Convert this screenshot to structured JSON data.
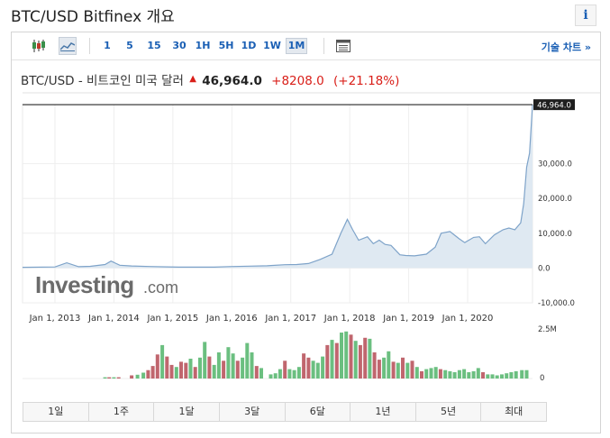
{
  "header": {
    "title": "BTC/USD Bitfinex 개요",
    "info_icon": "i"
  },
  "toolbar": {
    "periods": [
      "1",
      "5",
      "15",
      "30",
      "1H",
      "5H",
      "1D",
      "1W",
      "1M"
    ],
    "active_period": "1M",
    "tech_chart_label": "기술 차트 »",
    "icons": [
      "candlestick-icon",
      "area-chart-icon",
      "table-icon"
    ]
  },
  "quote": {
    "label": "BTC/USD - 비트코인 미국 달러",
    "last": "46,964.0",
    "change": "+8208.0",
    "change_pct": "(+21.18%)",
    "up_color": "#d91e18"
  },
  "brand": {
    "watermark_bold": "Investing",
    "watermark_domain": ".com"
  },
  "ranges": [
    "1일",
    "1주",
    "1달",
    "3달",
    "6달",
    "1년",
    "5년",
    "최대"
  ],
  "chart_data": {
    "type": "area",
    "current_price_label": "46,964.0",
    "y_ticks": [
      "30,000.0",
      "20,000.0",
      "10,000.0",
      "0.0",
      "-10,000.0"
    ],
    "y_tick_values": [
      30000,
      20000,
      10000,
      0,
      -10000
    ],
    "ylim": [
      -10000,
      47000
    ],
    "x_ticks": [
      "Jan 1, 2013",
      "Jan 1, 2014",
      "Jan 1, 2015",
      "Jan 1, 2016",
      "Jan 1, 2017",
      "Jan 1, 2018",
      "Jan 1, 2019",
      "Jan 1, 2020"
    ],
    "x_tick_years": [
      2013,
      2014,
      2015,
      2016,
      2017,
      2018,
      2019,
      2020
    ],
    "xlim": [
      2012.45,
      2021.1
    ],
    "x": [
      2012.45,
      2013.0,
      2013.2,
      2013.4,
      2013.6,
      2013.85,
      2013.95,
      2014.1,
      2014.3,
      2014.6,
      2014.9,
      2015.1,
      2015.4,
      2015.7,
      2015.95,
      2016.3,
      2016.6,
      2016.9,
      2017.1,
      2017.3,
      2017.5,
      2017.7,
      2017.85,
      2017.96,
      2018.05,
      2018.15,
      2018.3,
      2018.4,
      2018.5,
      2018.6,
      2018.7,
      2018.85,
      2018.95,
      2019.1,
      2019.3,
      2019.45,
      2019.55,
      2019.7,
      2019.85,
      2019.95,
      2020.1,
      2020.2,
      2020.3,
      2020.45,
      2020.6,
      2020.7,
      2020.8,
      2020.9,
      2020.95,
      2021.0,
      2021.05,
      2021.1
    ],
    "y": [
      200,
      300,
      1500,
      400,
      500,
      1000,
      2000,
      800,
      600,
      450,
      350,
      250,
      250,
      250,
      420,
      550,
      650,
      950,
      1000,
      1300,
      2500,
      4000,
      10000,
      14000,
      11000,
      8000,
      9000,
      7000,
      8000,
      6800,
      6500,
      3800,
      3600,
      3500,
      4000,
      6000,
      10000,
      10500,
      8500,
      7300,
      8800,
      9000,
      7000,
      9500,
      11000,
      11500,
      11000,
      13000,
      18500,
      29000,
      33000,
      46964
    ],
    "volume": {
      "label": "2.5M",
      "ylim": [
        0,
        2500000
      ],
      "zero_label": "0",
      "bars": [
        {
          "x": 2013.85,
          "v": 60000,
          "up": true
        },
        {
          "x": 2013.92,
          "v": 60000,
          "up": false
        },
        {
          "x": 2014.0,
          "v": 60000,
          "up": true
        },
        {
          "x": 2014.08,
          "v": 60000,
          "up": false
        },
        {
          "x": 2014.3,
          "v": 150000,
          "up": false
        },
        {
          "x": 2014.4,
          "v": 180000,
          "up": true
        },
        {
          "x": 2014.5,
          "v": 280000,
          "up": true
        },
        {
          "x": 2014.58,
          "v": 400000,
          "up": false
        },
        {
          "x": 2014.66,
          "v": 600000,
          "up": false
        },
        {
          "x": 2014.74,
          "v": 1150000,
          "up": false
        },
        {
          "x": 2014.82,
          "v": 1600000,
          "up": true
        },
        {
          "x": 2014.9,
          "v": 1050000,
          "up": false
        },
        {
          "x": 2014.98,
          "v": 650000,
          "up": false
        },
        {
          "x": 2015.06,
          "v": 550000,
          "up": true
        },
        {
          "x": 2015.14,
          "v": 800000,
          "up": false
        },
        {
          "x": 2015.22,
          "v": 750000,
          "up": false
        },
        {
          "x": 2015.3,
          "v": 950000,
          "up": true
        },
        {
          "x": 2015.38,
          "v": 550000,
          "up": false
        },
        {
          "x": 2015.46,
          "v": 1000000,
          "up": true
        },
        {
          "x": 2015.54,
          "v": 1750000,
          "up": true
        },
        {
          "x": 2015.62,
          "v": 1050000,
          "up": false
        },
        {
          "x": 2015.7,
          "v": 650000,
          "up": true
        },
        {
          "x": 2015.78,
          "v": 1250000,
          "up": true
        },
        {
          "x": 2015.86,
          "v": 850000,
          "up": false
        },
        {
          "x": 2015.94,
          "v": 1500000,
          "up": true
        },
        {
          "x": 2016.02,
          "v": 1200000,
          "up": true
        },
        {
          "x": 2016.1,
          "v": 850000,
          "up": false
        },
        {
          "x": 2016.18,
          "v": 1000000,
          "up": true
        },
        {
          "x": 2016.26,
          "v": 1700000,
          "up": true
        },
        {
          "x": 2016.34,
          "v": 1250000,
          "up": true
        },
        {
          "x": 2016.42,
          "v": 600000,
          "up": false
        },
        {
          "x": 2016.5,
          "v": 500000,
          "up": true
        },
        {
          "x": 2016.66,
          "v": 200000,
          "up": true
        },
        {
          "x": 2016.74,
          "v": 250000,
          "up": true
        },
        {
          "x": 2016.82,
          "v": 450000,
          "up": true
        },
        {
          "x": 2016.9,
          "v": 850000,
          "up": false
        },
        {
          "x": 2016.98,
          "v": 450000,
          "up": true
        },
        {
          "x": 2017.06,
          "v": 400000,
          "up": true
        },
        {
          "x": 2017.14,
          "v": 550000,
          "up": true
        },
        {
          "x": 2017.22,
          "v": 1200000,
          "up": false
        },
        {
          "x": 2017.3,
          "v": 1000000,
          "up": false
        },
        {
          "x": 2017.38,
          "v": 850000,
          "up": true
        },
        {
          "x": 2017.46,
          "v": 750000,
          "up": true
        },
        {
          "x": 2017.54,
          "v": 1050000,
          "up": true
        },
        {
          "x": 2017.62,
          "v": 1600000,
          "up": false
        },
        {
          "x": 2017.7,
          "v": 1850000,
          "up": true
        },
        {
          "x": 2017.78,
          "v": 1700000,
          "up": false
        },
        {
          "x": 2017.86,
          "v": 2200000,
          "up": true
        },
        {
          "x": 2017.94,
          "v": 2250000,
          "up": true
        },
        {
          "x": 2018.02,
          "v": 2100000,
          "up": false
        },
        {
          "x": 2018.1,
          "v": 1800000,
          "up": true
        },
        {
          "x": 2018.18,
          "v": 1600000,
          "up": false
        },
        {
          "x": 2018.26,
          "v": 1950000,
          "up": false
        },
        {
          "x": 2018.34,
          "v": 1900000,
          "up": true
        },
        {
          "x": 2018.42,
          "v": 1250000,
          "up": false
        },
        {
          "x": 2018.5,
          "v": 900000,
          "up": false
        },
        {
          "x": 2018.58,
          "v": 1000000,
          "up": true
        },
        {
          "x": 2018.66,
          "v": 1300000,
          "up": true
        },
        {
          "x": 2018.74,
          "v": 800000,
          "up": false
        },
        {
          "x": 2018.82,
          "v": 750000,
          "up": true
        },
        {
          "x": 2018.9,
          "v": 1000000,
          "up": false
        },
        {
          "x": 2018.98,
          "v": 750000,
          "up": true
        },
        {
          "x": 2019.06,
          "v": 850000,
          "up": false
        },
        {
          "x": 2019.14,
          "v": 550000,
          "up": true
        },
        {
          "x": 2019.22,
          "v": 350000,
          "up": false
        },
        {
          "x": 2019.3,
          "v": 450000,
          "up": true
        },
        {
          "x": 2019.38,
          "v": 500000,
          "up": true
        },
        {
          "x": 2019.46,
          "v": 550000,
          "up": true
        },
        {
          "x": 2019.54,
          "v": 450000,
          "up": false
        },
        {
          "x": 2019.62,
          "v": 400000,
          "up": true
        },
        {
          "x": 2019.7,
          "v": 350000,
          "up": true
        },
        {
          "x": 2019.78,
          "v": 300000,
          "up": true
        },
        {
          "x": 2019.86,
          "v": 400000,
          "up": true
        },
        {
          "x": 2019.94,
          "v": 450000,
          "up": true
        },
        {
          "x": 2020.02,
          "v": 300000,
          "up": true
        },
        {
          "x": 2020.1,
          "v": 350000,
          "up": true
        },
        {
          "x": 2020.18,
          "v": 500000,
          "up": true
        },
        {
          "x": 2020.26,
          "v": 300000,
          "up": false
        },
        {
          "x": 2020.34,
          "v": 200000,
          "up": true
        },
        {
          "x": 2020.42,
          "v": 200000,
          "up": true
        },
        {
          "x": 2020.5,
          "v": 150000,
          "up": true
        },
        {
          "x": 2020.58,
          "v": 200000,
          "up": true
        },
        {
          "x": 2020.66,
          "v": 250000,
          "up": true
        },
        {
          "x": 2020.74,
          "v": 300000,
          "up": true
        },
        {
          "x": 2020.82,
          "v": 350000,
          "up": true
        },
        {
          "x": 2020.92,
          "v": 400000,
          "up": true
        },
        {
          "x": 2021.0,
          "v": 400000,
          "up": true
        }
      ]
    },
    "colors": {
      "area_fill": "#dfe9f2",
      "area_line": "#7ea3c9",
      "up": "#6bbf80",
      "down": "#c0666e",
      "grid": "#eeeeee"
    }
  }
}
